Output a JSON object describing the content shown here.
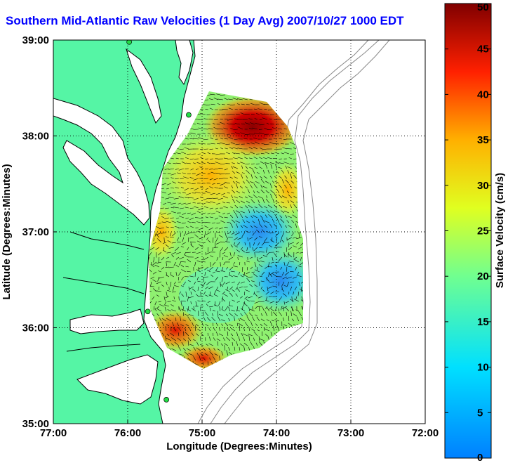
{
  "title": "Southern Mid-Atlantic Raw Velocities (1 Day Avg) 2007/10/27 1000 EDT",
  "map": {
    "xlabel": "Longitude (Degrees:Minutes)",
    "ylabel": "Latitude (Degrees:Minutes)",
    "lon_range": [
      -77,
      -72
    ],
    "lat_range": [
      35,
      39
    ],
    "x_ticks": [
      {
        "value": -77,
        "label": "77:00"
      },
      {
        "value": -76,
        "label": "76:00"
      },
      {
        "value": -75,
        "label": "75:00"
      },
      {
        "value": -74,
        "label": "74:00"
      },
      {
        "value": -73,
        "label": "73:00"
      },
      {
        "value": -72,
        "label": "72:00"
      }
    ],
    "y_ticks": [
      {
        "value": 35,
        "label": "35:00"
      },
      {
        "value": 36,
        "label": "36:00"
      },
      {
        "value": 37,
        "label": "37:00"
      },
      {
        "value": 38,
        "label": "38:00"
      },
      {
        "value": 39,
        "label": "39:00"
      }
    ],
    "grid": "dotted",
    "land_color": "#55f5a5",
    "stations": [
      {
        "lon": -75.98,
        "lat": 38.98
      },
      {
        "lon": -75.18,
        "lat": 38.22
      },
      {
        "lon": -75.73,
        "lat": 36.17
      },
      {
        "lon": -75.48,
        "lat": 35.25
      }
    ]
  },
  "colorbar": {
    "label": "Surface Velocity (cm/s)",
    "min": 0,
    "max": 50,
    "ticks": [
      {
        "value": 0,
        "label": "0"
      },
      {
        "value": 5,
        "label": "5"
      },
      {
        "value": 10,
        "label": "10"
      },
      {
        "value": 15,
        "label": "15"
      },
      {
        "value": 20,
        "label": "20"
      },
      {
        "value": 25,
        "label": "25"
      },
      {
        "value": 30,
        "label": "30"
      },
      {
        "value": 35,
        "label": "35"
      },
      {
        "value": 40,
        "label": "40"
      },
      {
        "value": 45,
        "label": "45"
      },
      {
        "value": 50,
        "label": "50"
      }
    ],
    "colormap": "jet"
  }
}
